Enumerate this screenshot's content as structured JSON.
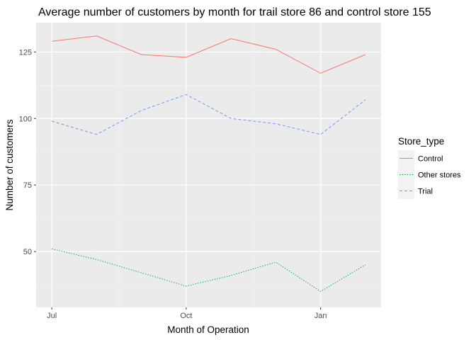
{
  "chart_data": {
    "type": "line",
    "title": "Average number of customers by month for trail store 86 and control store 155",
    "xlabel": "Month of Operation",
    "ylabel": "Number of customers",
    "x": [
      "2018-07",
      "2018-08",
      "2018-09",
      "2018-10",
      "2018-11",
      "2018-12",
      "2019-01",
      "2019-02"
    ],
    "x_tick_labels": [
      "Jul",
      "Oct",
      "Jan"
    ],
    "x_tick_positions": [
      "2018-07",
      "2018-10",
      "2019-01"
    ],
    "y_ticks": [
      50,
      75,
      100,
      125
    ],
    "ylim": [
      29,
      136
    ],
    "grid": true,
    "legend": {
      "title": "Store_type",
      "placement": "right"
    },
    "series": [
      {
        "name": "Control",
        "color": "#F8766D",
        "linetype": "solid",
        "values": [
          129,
          131,
          124,
          123,
          130,
          126,
          117,
          124
        ]
      },
      {
        "name": "Other stores",
        "color": "#00BA38",
        "linetype": "dotted",
        "values": [
          51,
          47,
          42,
          37,
          41,
          46,
          35,
          45
        ]
      },
      {
        "name": "Trial",
        "color": "#619CFF",
        "linetype": "dashed",
        "values": [
          99,
          94,
          103,
          109,
          100,
          98,
          94,
          107
        ]
      }
    ]
  }
}
